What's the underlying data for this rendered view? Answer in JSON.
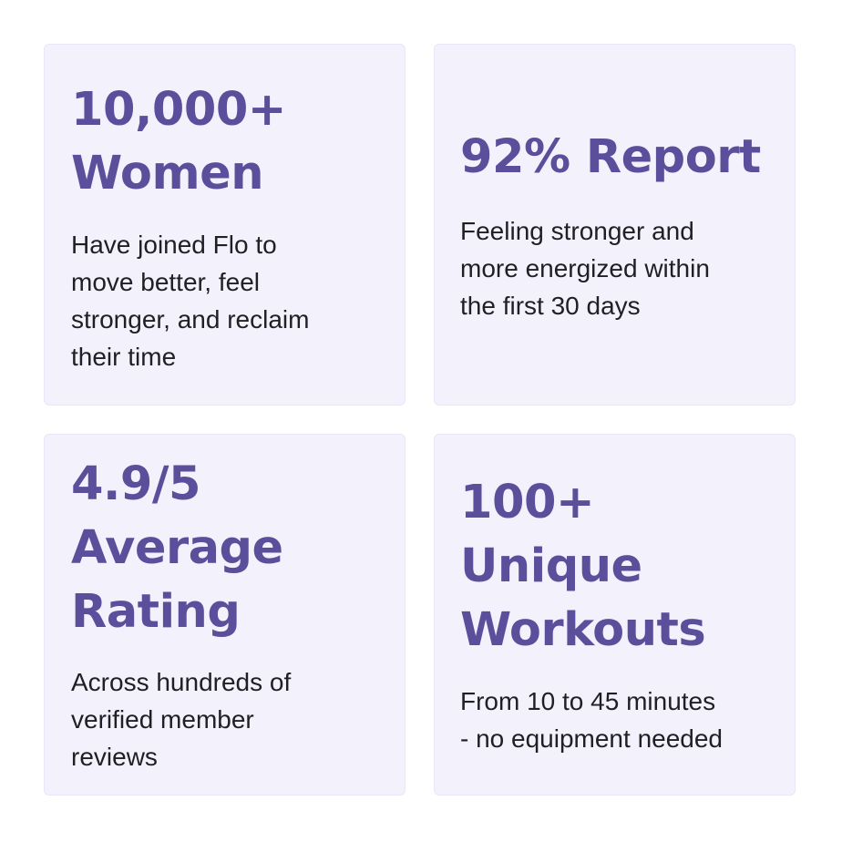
{
  "stats": [
    {
      "title_lines": [
        "10,000+",
        "Women"
      ],
      "desc_lines": [
        "Have joined Flo to",
        "move better, feel",
        "stronger, and reclaim",
        "their time"
      ]
    },
    {
      "title_lines": [
        "92% Report"
      ],
      "desc_lines": [
        "Feeling stronger and",
        "more energized within",
        "the first 30 days"
      ]
    },
    {
      "title_lines": [
        "4.9/5",
        "Average",
        "Rating"
      ],
      "desc_lines": [
        "Across hundreds of",
        "verified member",
        "reviews"
      ]
    },
    {
      "title_lines": [
        "100+",
        "Unique",
        "Workouts"
      ],
      "desc_lines": [
        "From 10 to 45 minutes",
        "- no equipment needed"
      ]
    }
  ],
  "colors": {
    "title": "#5b4f9c",
    "card_background": "#f3f1fc",
    "description": "#1f1f24"
  }
}
